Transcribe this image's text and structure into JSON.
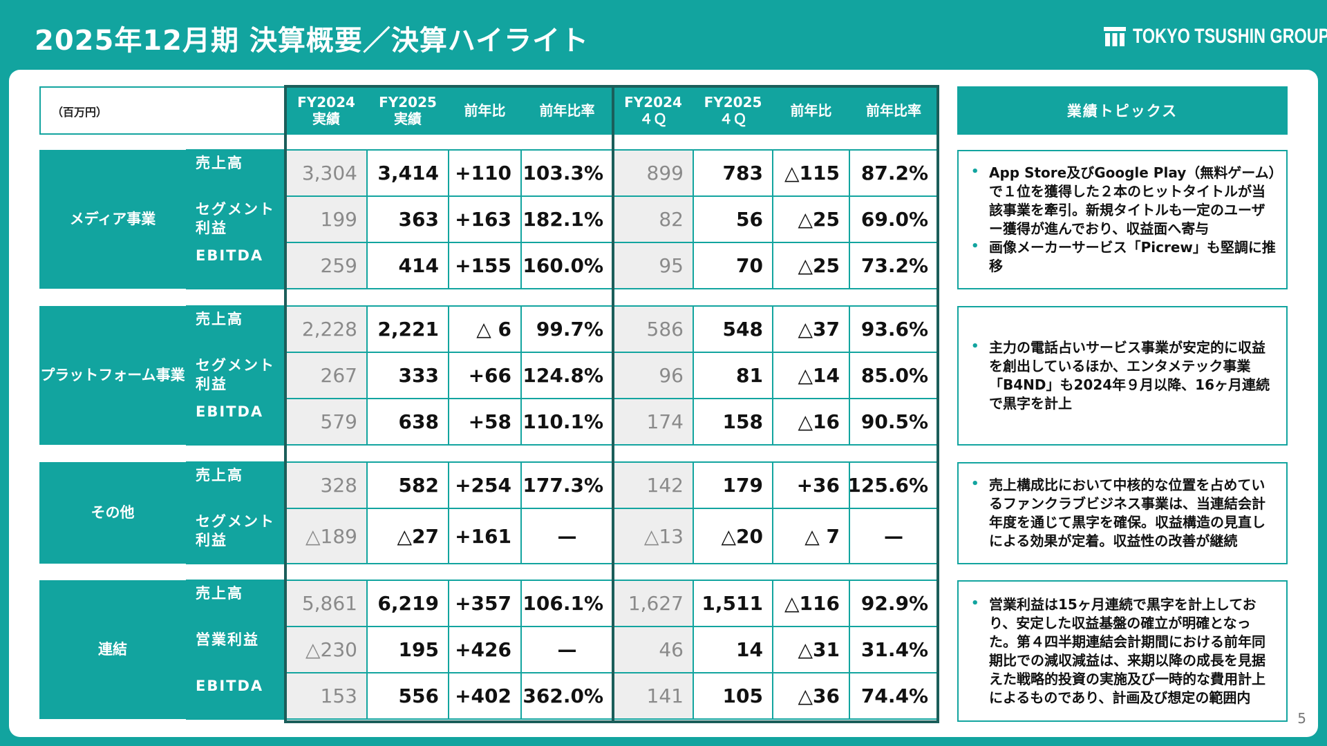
{
  "title": "2025年12月期 決算概要／決算ハイライト",
  "logo_text": "TOKYO TSUSHIN GROUP",
  "unit_label": "（百万円）",
  "page_number": "5",
  "headers": [
    {
      "line1": "FY2024",
      "line2": "実績"
    },
    {
      "line1": "FY2025",
      "line2": "実績"
    },
    {
      "line1": "前年比",
      "line2": ""
    },
    {
      "line1": "前年比率",
      "line2": ""
    },
    {
      "line1": "FY2024",
      "line2": "４Ｑ"
    },
    {
      "line1": "FY2025",
      "line2": "４Ｑ"
    },
    {
      "line1": "前年比",
      "line2": ""
    },
    {
      "line1": "前年比率",
      "line2": ""
    }
  ],
  "segments": [
    {
      "name": "メディア事業",
      "rows": [
        {
          "metric": "売上高",
          "values": [
            "3,304",
            "3,414",
            "+110",
            "103.3%",
            "899",
            "783",
            "△115",
            "87.2%"
          ]
        },
        {
          "metric": "セグメント利益",
          "values": [
            "199",
            "363",
            "+163",
            "182.1%",
            "82",
            "56",
            "△25",
            "69.0%"
          ]
        },
        {
          "metric": "EBITDA",
          "values": [
            "259",
            "414",
            "+155",
            "160.0%",
            "95",
            "70",
            "△25",
            "73.2%"
          ]
        }
      ]
    },
    {
      "name": "プラットフォーム事業",
      "rows": [
        {
          "metric": "売上高",
          "values": [
            "2,228",
            "2,221",
            "△ 6",
            "99.7%",
            "586",
            "548",
            "△37",
            "93.6%"
          ]
        },
        {
          "metric": "セグメント利益",
          "values": [
            "267",
            "333",
            "+66",
            "124.8%",
            "96",
            "81",
            "△14",
            "85.0%"
          ]
        },
        {
          "metric": "EBITDA",
          "values": [
            "579",
            "638",
            "+58",
            "110.1%",
            "174",
            "158",
            "△16",
            "90.5%"
          ]
        }
      ]
    },
    {
      "name": "その他",
      "rows": [
        {
          "metric": "売上高",
          "values": [
            "328",
            "582",
            "+254",
            "177.3%",
            "142",
            "179",
            "+36",
            "125.6%"
          ]
        },
        {
          "metric": "セグメント利益",
          "values": [
            "△189",
            "△27",
            "+161",
            "—",
            "△13",
            "△20",
            "△ 7",
            "—"
          ]
        }
      ]
    },
    {
      "name": "連結",
      "rows": [
        {
          "metric": "売上高",
          "values": [
            "5,861",
            "6,219",
            "+357",
            "106.1%",
            "1,627",
            "1,511",
            "△116",
            "92.9%"
          ]
        },
        {
          "metric": "営業利益",
          "values": [
            "△230",
            "195",
            "+426",
            "—",
            "46",
            "14",
            "△31",
            "31.4%"
          ]
        },
        {
          "metric": "EBITDA",
          "values": [
            "153",
            "556",
            "+402",
            "362.0%",
            "141",
            "105",
            "△36",
            "74.4%"
          ]
        }
      ]
    }
  ],
  "topics_header": "業績トピックス",
  "topics": [
    [
      "App Store及びGoogle Play（無料ゲーム）で１位を獲得した２本のヒットタイトルが当該事業を牽引。新規タイトルも一定のユーザー獲得が進んでおり、収益面へ寄与",
      "画像メーカーサービス「Picrew」も堅調に推移"
    ],
    [
      "主力の電話占いサービス事業が安定的に収益を創出しているほか、エンタメテック事業「B4ND」も2024年９月以降、16ヶ月連続で黒字を計上"
    ],
    [
      "売上構成比において中核的な位置を占めているファンクラブビジネス事業は、当連結会計年度を通じて黒字を確保。収益構造の見直しによる効果が定着。収益性の改善が継続"
    ],
    [
      "営業利益は15ヶ月連続で黒字を計上しており、安定した収益基盤の確立が明確となった。第４四半期連結会計期間における前年同期比での減収減益は、来期以降の成長を見据えた戦略的投資の実施及び一時的な費用計上によるものであり、計画及び想定の範囲内"
    ]
  ]
}
